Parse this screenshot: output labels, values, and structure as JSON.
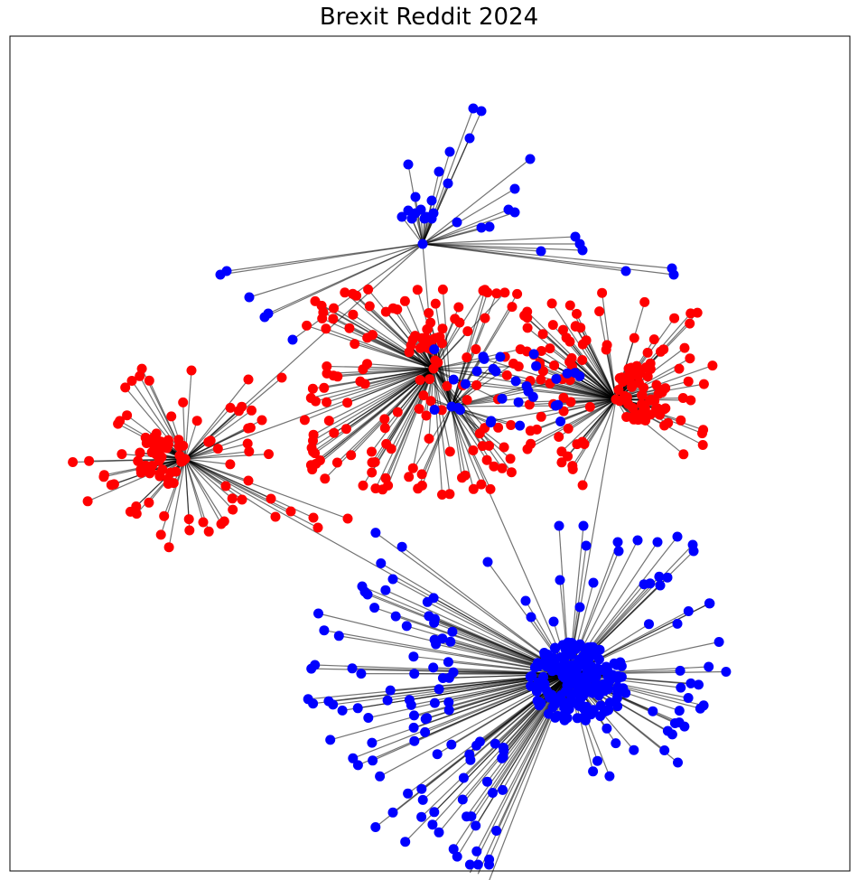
{
  "title": "Brexit Reddit 2024",
  "colors": {
    "group_a": "#ff0000",
    "group_b": "#0000ff",
    "edge": "#000000",
    "frame": "#000000",
    "background": "#ffffff"
  },
  "legend": null
}
